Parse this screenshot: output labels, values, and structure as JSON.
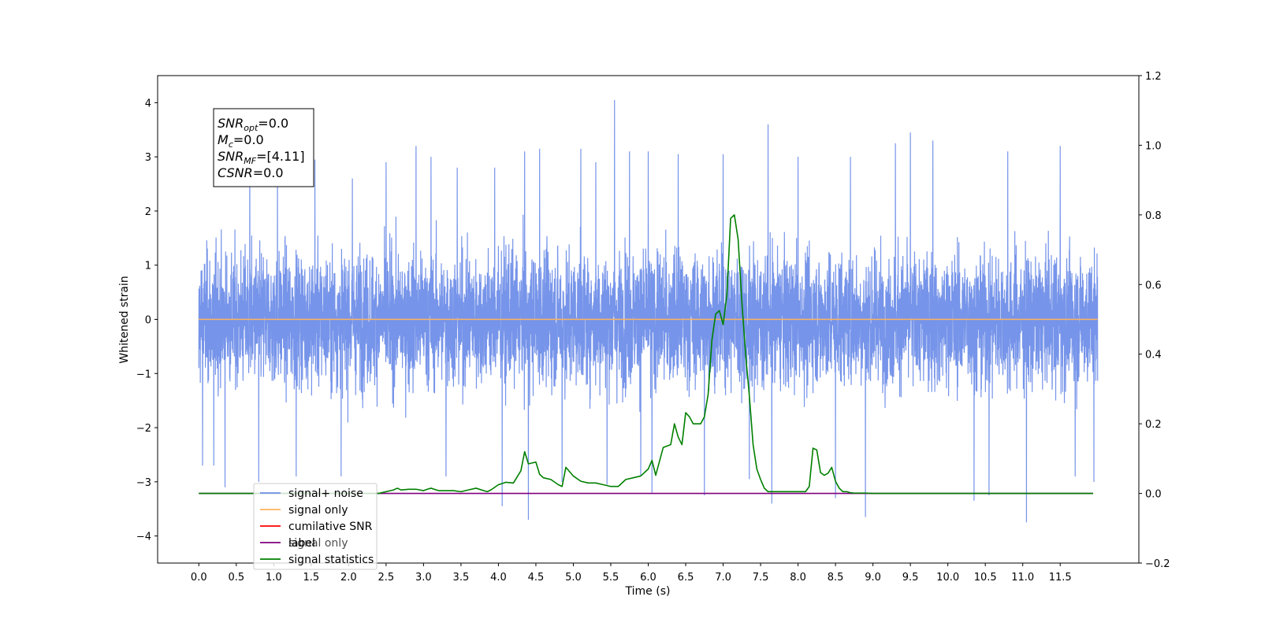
{
  "chart_data": {
    "type": "line",
    "xlabel": "Time (s)",
    "ylabel": "Whitened strain",
    "xlim": [
      -0.55,
      12.55
    ],
    "ylim": [
      -4.5,
      4.5
    ],
    "y2lim": [
      -0.2,
      1.2
    ],
    "x_ticks": [
      "0.0",
      "0.5",
      "1.0",
      "1.5",
      "2.0",
      "2.5",
      "3.0",
      "3.5",
      "4.0",
      "4.5",
      "5.0",
      "5.5",
      "6.0",
      "6.5",
      "7.0",
      "7.5",
      "8.0",
      "8.5",
      "9.0",
      "9.5",
      "10.0",
      "10.5",
      "11.0",
      "11.5"
    ],
    "y_ticks": [
      "4",
      "3",
      "2",
      "1",
      "0",
      "−1",
      "−2",
      "−3",
      "−4"
    ],
    "y2_ticks": [
      "1.2",
      "1.0",
      "0.8",
      "0.6",
      "0.4",
      "0.2",
      "0.0",
      "−0.2"
    ],
    "noise": {
      "x_range": [
        0.0,
        12.0
      ],
      "typical_positive_peak": 2.3,
      "typical_negative_peak": -2.2,
      "spikes": [
        {
          "x": 0.0,
          "y": -0.9
        },
        {
          "x": 0.05,
          "y": -2.7
        },
        {
          "x": 0.2,
          "y": -2.7
        },
        {
          "x": 0.35,
          "y": -3.1
        },
        {
          "x": 0.68,
          "y": 2.85
        },
        {
          "x": 0.8,
          "y": -3.0
        },
        {
          "x": 1.05,
          "y": 3.0
        },
        {
          "x": 1.3,
          "y": -2.9
        },
        {
          "x": 1.55,
          "y": 2.95
        },
        {
          "x": 1.9,
          "y": -2.9
        },
        {
          "x": 2.05,
          "y": 2.6
        },
        {
          "x": 2.5,
          "y": 2.9
        },
        {
          "x": 2.9,
          "y": 3.2
        },
        {
          "x": 3.1,
          "y": 3.0
        },
        {
          "x": 3.3,
          "y": -2.9
        },
        {
          "x": 3.45,
          "y": 2.8
        },
        {
          "x": 3.95,
          "y": 2.8
        },
        {
          "x": 4.05,
          "y": -3.45
        },
        {
          "x": 4.35,
          "y": 3.1
        },
        {
          "x": 4.4,
          "y": -3.7
        },
        {
          "x": 4.55,
          "y": 3.15
        },
        {
          "x": 4.85,
          "y": -3.0
        },
        {
          "x": 5.1,
          "y": 3.15
        },
        {
          "x": 5.3,
          "y": 2.9
        },
        {
          "x": 5.45,
          "y": -3.05
        },
        {
          "x": 5.55,
          "y": 4.05
        },
        {
          "x": 5.75,
          "y": 3.1
        },
        {
          "x": 5.9,
          "y": -2.9
        },
        {
          "x": 6.0,
          "y": 3.1
        },
        {
          "x": 6.05,
          "y": -3.2
        },
        {
          "x": 6.4,
          "y": 3.05
        },
        {
          "x": 6.75,
          "y": -3.25
        },
        {
          "x": 7.0,
          "y": 3.05
        },
        {
          "x": 7.35,
          "y": -2.95
        },
        {
          "x": 7.6,
          "y": 3.6
        },
        {
          "x": 7.65,
          "y": -3.4
        },
        {
          "x": 8.0,
          "y": 3.0
        },
        {
          "x": 8.5,
          "y": -3.3
        },
        {
          "x": 8.7,
          "y": 3.0
        },
        {
          "x": 8.9,
          "y": -3.65
        },
        {
          "x": 9.3,
          "y": 3.25
        },
        {
          "x": 9.5,
          "y": 3.45
        },
        {
          "x": 9.8,
          "y": 3.3
        },
        {
          "x": 10.35,
          "y": -3.35
        },
        {
          "x": 10.55,
          "y": -3.25
        },
        {
          "x": 10.8,
          "y": 3.1
        },
        {
          "x": 11.05,
          "y": -3.75
        },
        {
          "x": 11.5,
          "y": 3.2
        },
        {
          "x": 11.7,
          "y": -2.9
        },
        {
          "x": 11.95,
          "y": -3.0
        }
      ]
    },
    "series": [
      {
        "name": "signal+ noise",
        "color": "#6f8ee8",
        "style": "dense oscillating noise trace"
      },
      {
        "name": "signal only",
        "color": "#ffb35c",
        "x": [
          0.0,
          12.0
        ],
        "y": [
          0.0,
          0.0
        ]
      },
      {
        "name": "cumilative SNR",
        "color": "#ff0000",
        "x": [],
        "y": []
      },
      {
        "name": "label",
        "color": "#800080",
        "axis": "right",
        "x": [
          0.0,
          11.94
        ],
        "y": [
          0.0,
          0.0
        ]
      },
      {
        "name": "signal statistics",
        "color": "#008000",
        "axis": "right",
        "x": [
          0.0,
          2.4,
          2.6,
          2.65,
          2.7,
          2.8,
          2.9,
          3.0,
          3.05,
          3.1,
          3.2,
          3.4,
          3.5,
          3.6,
          3.7,
          3.85,
          3.9,
          4.0,
          4.1,
          4.2,
          4.3,
          4.35,
          4.4,
          4.5,
          4.55,
          4.6,
          4.7,
          4.8,
          4.85,
          4.9,
          5.0,
          5.1,
          5.2,
          5.3,
          5.4,
          5.5,
          5.6,
          5.7,
          5.8,
          5.9,
          6.0,
          6.05,
          6.1,
          6.2,
          6.3,
          6.35,
          6.4,
          6.45,
          6.5,
          6.55,
          6.6,
          6.7,
          6.75,
          6.8,
          6.85,
          6.9,
          6.95,
          7.0,
          7.05,
          7.1,
          7.15,
          7.2,
          7.25,
          7.3,
          7.35,
          7.4,
          7.45,
          7.5,
          7.55,
          7.6,
          7.65,
          7.7,
          7.8,
          7.9,
          8.0,
          8.1,
          8.15,
          8.2,
          8.25,
          8.3,
          8.35,
          8.4,
          8.45,
          8.5,
          8.55,
          8.6,
          8.65,
          8.7,
          8.75,
          8.8,
          8.9,
          9.0,
          9.5,
          10.0,
          11.0,
          11.94
        ],
        "y": [
          0.0,
          0.0,
          0.01,
          0.015,
          0.01,
          0.012,
          0.012,
          0.008,
          0.012,
          0.015,
          0.008,
          0.008,
          0.005,
          0.01,
          0.015,
          0.005,
          0.01,
          0.025,
          0.032,
          0.03,
          0.065,
          0.12,
          0.085,
          0.09,
          0.055,
          0.045,
          0.04,
          0.025,
          0.02,
          0.075,
          0.05,
          0.035,
          0.03,
          0.03,
          0.025,
          0.02,
          0.02,
          0.04,
          0.045,
          0.05,
          0.07,
          0.095,
          0.052,
          0.132,
          0.14,
          0.2,
          0.162,
          0.14,
          0.232,
          0.22,
          0.2,
          0.2,
          0.22,
          0.285,
          0.44,
          0.515,
          0.525,
          0.485,
          0.57,
          0.79,
          0.8,
          0.73,
          0.55,
          0.4,
          0.28,
          0.14,
          0.07,
          0.04,
          0.015,
          0.005,
          0.005,
          0.005,
          0.005,
          0.005,
          0.005,
          0.005,
          0.02,
          0.13,
          0.125,
          0.06,
          0.052,
          0.058,
          0.075,
          0.035,
          0.015,
          0.005,
          0.005,
          0.002,
          0.001,
          0.001,
          0.001,
          0.0,
          0.0,
          0.0,
          0.0,
          0.0
        ]
      }
    ],
    "info_box": {
      "lines": [
        {
          "name": "SNR",
          "sub": "opt",
          "value": "=0.0"
        },
        {
          "name": "M",
          "sub": "c",
          "value": "=0.0"
        },
        {
          "name": "SNR",
          "sub": "MF",
          "value": "=[4.11]"
        },
        {
          "name": "CSNR",
          "sub": "",
          "value": "=0.0"
        }
      ]
    },
    "legend": {
      "location": "lower-left",
      "entries": [
        "signal+ noise",
        "signal only",
        "cumilative SNR",
        "label",
        "signal statistics"
      ],
      "hidden_label": "signal only"
    },
    "grid": false
  }
}
